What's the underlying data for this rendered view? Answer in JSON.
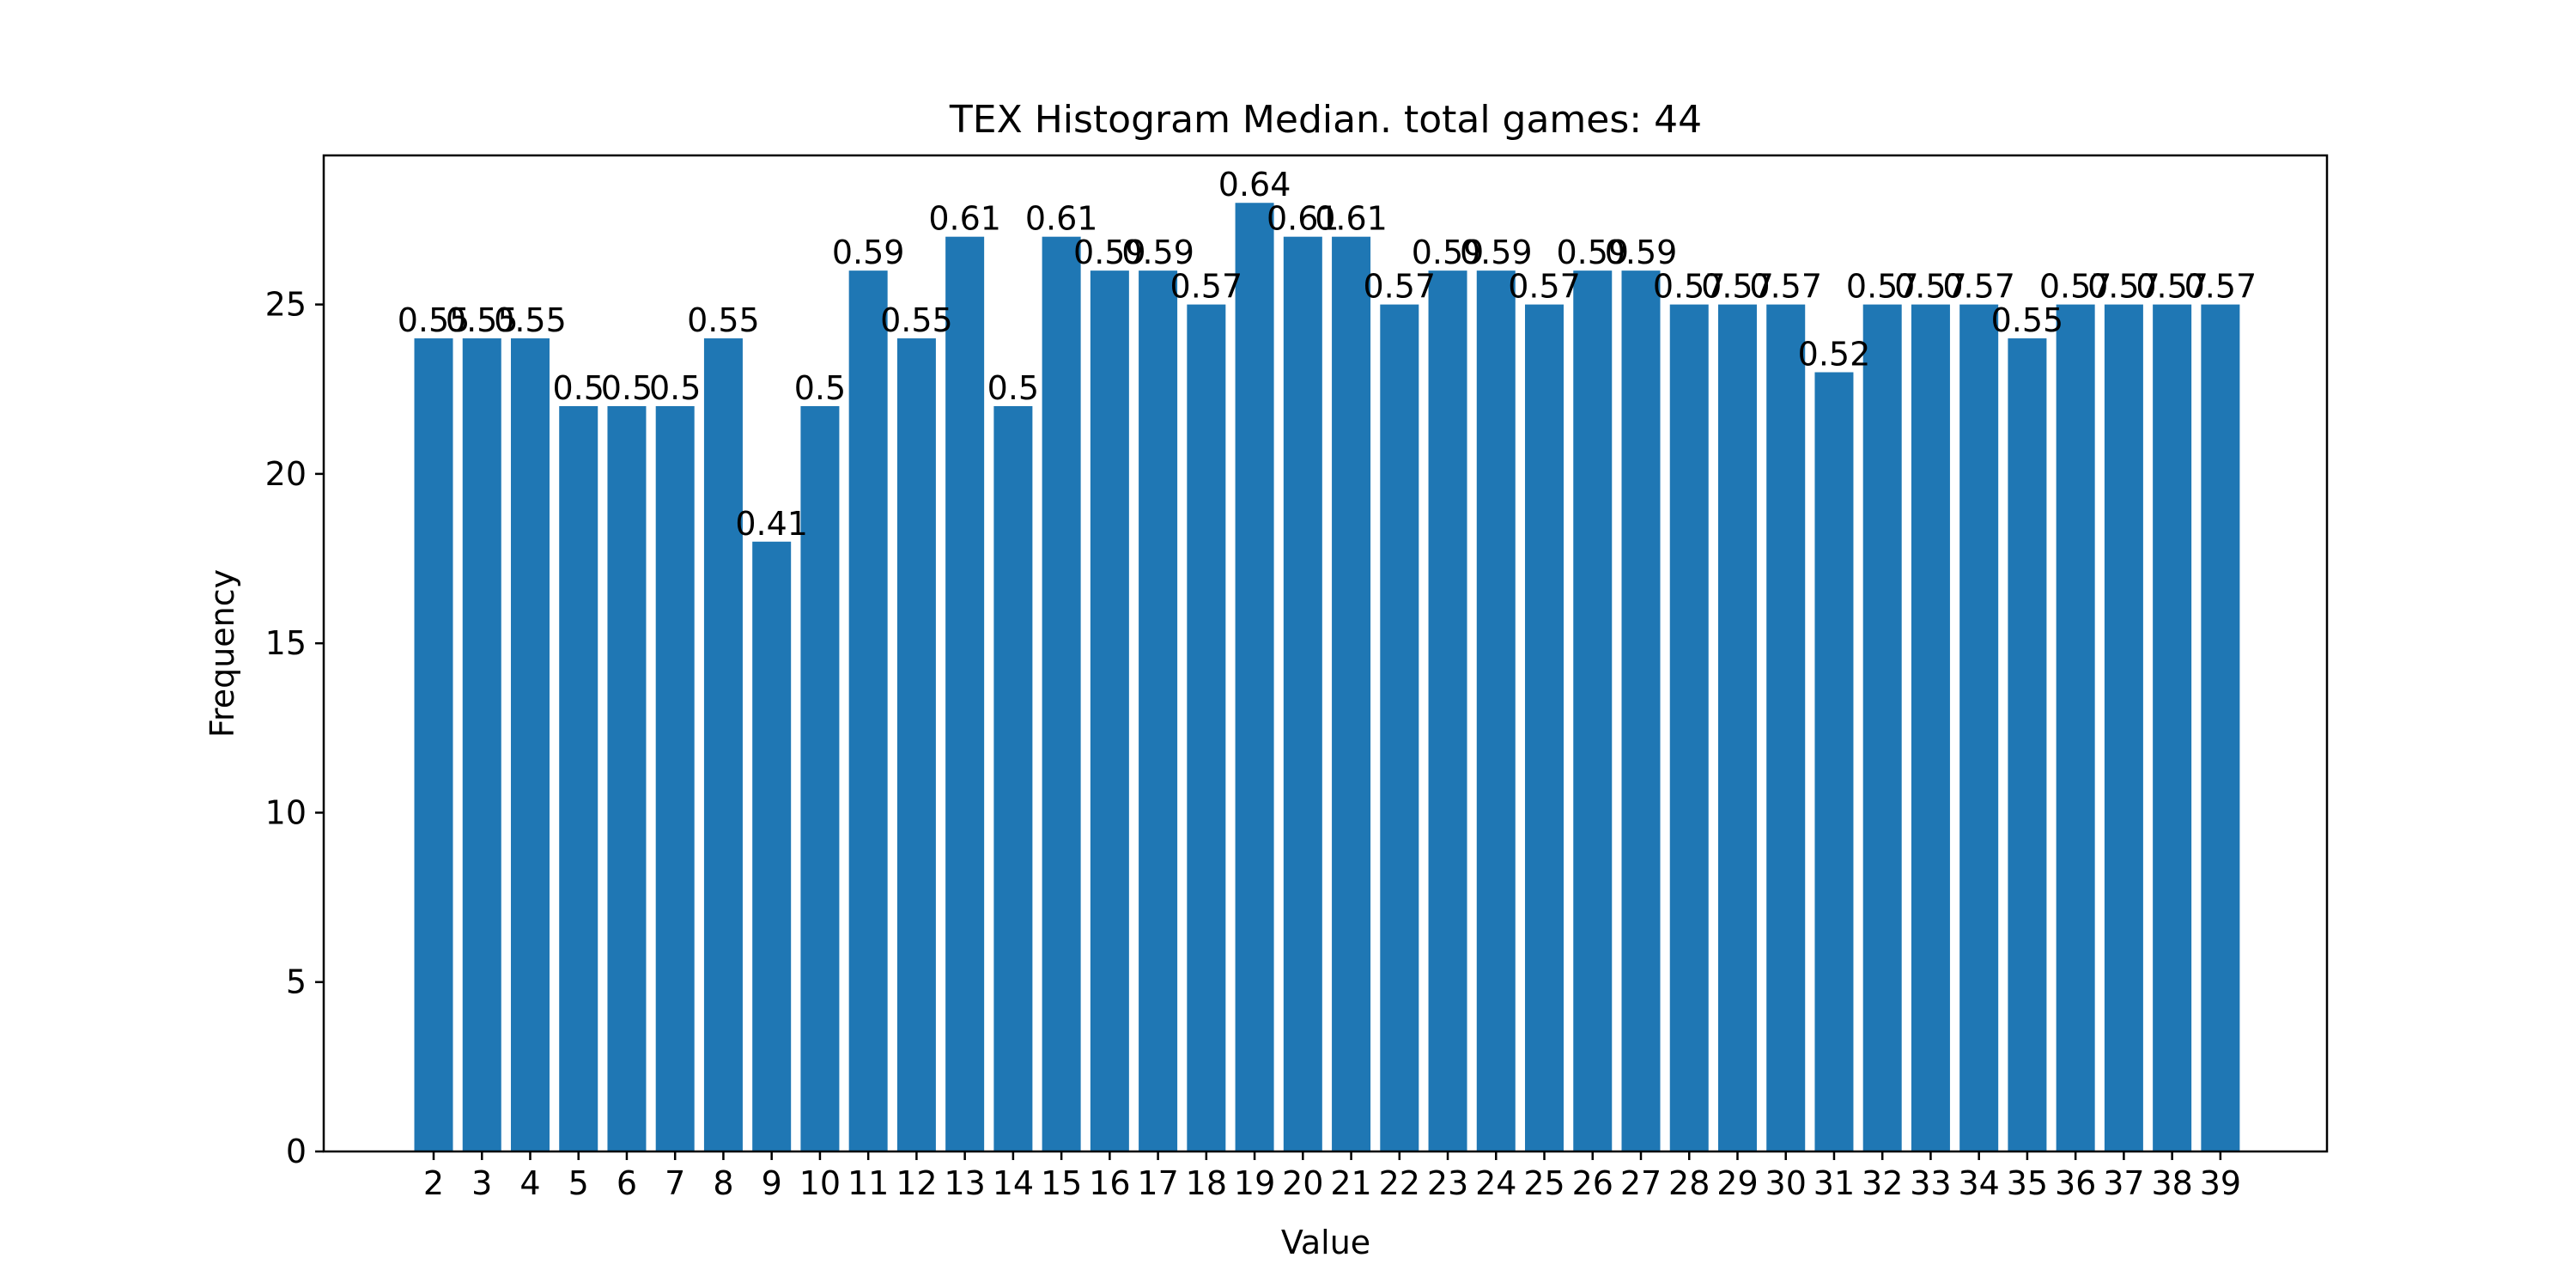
{
  "chart_data": {
    "type": "bar",
    "title": "TEX Histogram Median. total games: 44",
    "xlabel": "Value",
    "ylabel": "Frequency",
    "ylim": [
      0,
      29.4
    ],
    "yticks": [
      0,
      5,
      10,
      15,
      20,
      25
    ],
    "grid": false,
    "bar_color": "#1f77b4",
    "categories": [
      "2",
      "3",
      "4",
      "5",
      "6",
      "7",
      "8",
      "9",
      "10",
      "11",
      "12",
      "13",
      "14",
      "15",
      "16",
      "17",
      "18",
      "19",
      "20",
      "21",
      "22",
      "23",
      "24",
      "25",
      "26",
      "27",
      "28",
      "29",
      "30",
      "31",
      "32",
      "33",
      "34",
      "35",
      "36",
      "37",
      "38",
      "39"
    ],
    "values": [
      24,
      24,
      24,
      22,
      22,
      22,
      24,
      18,
      22,
      26,
      24,
      27,
      22,
      27,
      26,
      26,
      25,
      28,
      27,
      27,
      25,
      26,
      26,
      25,
      26,
      26,
      25,
      25,
      25,
      23,
      25,
      25,
      25,
      24,
      25,
      25,
      25,
      25
    ],
    "bar_labels": [
      "0.55",
      "0.55",
      "0.55",
      "0.5",
      "0.5",
      "0.5",
      "0.55",
      "0.41",
      "0.5",
      "0.59",
      "0.55",
      "0.61",
      "0.5",
      "0.61",
      "0.59",
      "0.59",
      "0.57",
      "0.64",
      "0.61",
      "0.61",
      "0.57",
      "0.59",
      "0.59",
      "0.57",
      "0.59",
      "0.59",
      "0.57",
      "0.57",
      "0.57",
      "0.52",
      "0.57",
      "0.57",
      "0.57",
      "0.55",
      "0.57",
      "0.57",
      "0.57",
      "0.57"
    ]
  }
}
